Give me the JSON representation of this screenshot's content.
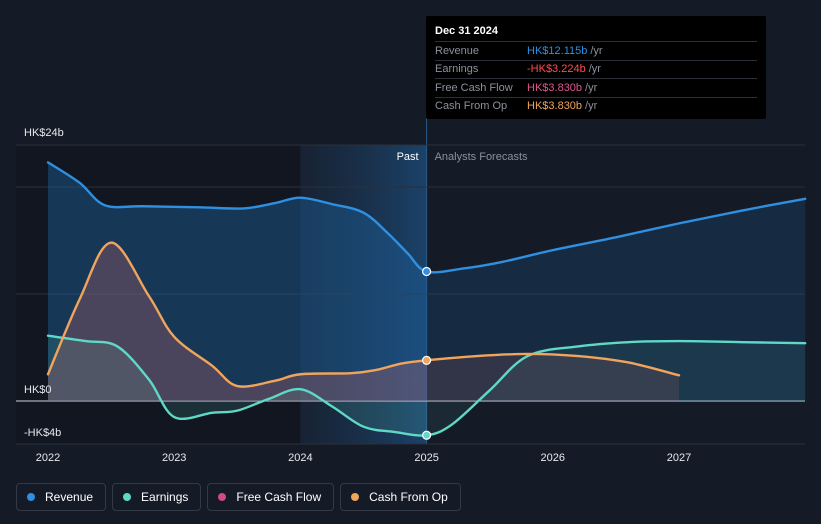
{
  "tooltip": {
    "date": "Dec 31 2024",
    "rows": [
      {
        "label": "Revenue",
        "value": "HK$12.115b",
        "unit": "/yr",
        "color": "#2f8fe0"
      },
      {
        "label": "Earnings",
        "value": "-HK$3.224b",
        "unit": "/yr",
        "color": "#ff4d4d"
      },
      {
        "label": "Free Cash Flow",
        "value": "HK$3.830b",
        "unit": "/yr",
        "color": "#e0558c"
      },
      {
        "label": "Cash From Op",
        "value": "HK$3.830b",
        "unit": "/yr",
        "color": "#f0a45c"
      }
    ]
  },
  "legend": [
    {
      "label": "Revenue",
      "color": "#2f8fe0"
    },
    {
      "label": "Earnings",
      "color": "#5fd9c6"
    },
    {
      "label": "Free Cash Flow",
      "color": "#d04a86"
    },
    {
      "label": "Cash From Op",
      "color": "#f0a45c"
    }
  ],
  "chart_data": {
    "type": "line",
    "title": "",
    "xlabel": "",
    "ylabel": "",
    "x_ticks": [
      "2022",
      "2023",
      "2024",
      "2025",
      "2026",
      "2027"
    ],
    "y_labels": {
      "top": "HK$24b",
      "zero": "HK$0",
      "bottom": "-HK$4b"
    },
    "xlim": [
      2021.8,
      2028.0
    ],
    "ylim": [
      -4,
      24
    ],
    "past_label": "Past",
    "forecast_label": "Analysts Forecasts",
    "divider_x": 2025.0,
    "shaded_start_x": 2024.0,
    "series": [
      {
        "name": "Revenue",
        "color": "#2f8fe0",
        "points": [
          [
            2022.0,
            22.3
          ],
          [
            2022.25,
            20.4
          ],
          [
            2022.45,
            18.3
          ],
          [
            2022.75,
            18.2
          ],
          [
            2023.2,
            18.1
          ],
          [
            2023.55,
            18.0
          ],
          [
            2023.8,
            18.5
          ],
          [
            2024.0,
            19.0
          ],
          [
            2024.25,
            18.4
          ],
          [
            2024.5,
            17.6
          ],
          [
            2024.7,
            15.6
          ],
          [
            2024.85,
            13.8
          ],
          [
            2025.0,
            12.1
          ],
          [
            2025.3,
            12.4
          ],
          [
            2025.6,
            13.0
          ],
          [
            2026.0,
            14.1
          ],
          [
            2026.5,
            15.3
          ],
          [
            2027.0,
            16.6
          ],
          [
            2027.5,
            17.8
          ],
          [
            2028.0,
            18.9
          ]
        ],
        "forecast_from": 2025.0
      },
      {
        "name": "Earnings",
        "color": "#5fd9c6",
        "points": [
          [
            2022.0,
            6.1
          ],
          [
            2022.3,
            5.6
          ],
          [
            2022.55,
            5.1
          ],
          [
            2022.8,
            2.0
          ],
          [
            2023.0,
            -1.5
          ],
          [
            2023.3,
            -1.1
          ],
          [
            2023.5,
            -0.9
          ],
          [
            2023.75,
            0.2
          ],
          [
            2024.0,
            1.1
          ],
          [
            2024.25,
            -0.5
          ],
          [
            2024.5,
            -2.4
          ],
          [
            2024.75,
            -2.9
          ],
          [
            2025.0,
            -3.2
          ],
          [
            2025.2,
            -2.2
          ],
          [
            2025.5,
            1.0
          ],
          [
            2025.8,
            4.2
          ],
          [
            2026.2,
            5.1
          ],
          [
            2026.6,
            5.5
          ],
          [
            2027.0,
            5.6
          ],
          [
            2027.5,
            5.5
          ],
          [
            2028.0,
            5.4
          ]
        ],
        "forecast_from": 2025.0
      },
      {
        "name": "Cash From Op",
        "color": "#f0a45c",
        "points": [
          [
            2022.0,
            2.5
          ],
          [
            2022.25,
            9.5
          ],
          [
            2022.5,
            14.8
          ],
          [
            2022.8,
            9.8
          ],
          [
            2023.0,
            6.0
          ],
          [
            2023.3,
            3.3
          ],
          [
            2023.5,
            1.4
          ],
          [
            2023.8,
            1.9
          ],
          [
            2024.0,
            2.5
          ],
          [
            2024.4,
            2.6
          ],
          [
            2024.6,
            2.9
          ],
          [
            2024.8,
            3.5
          ],
          [
            2025.0,
            3.8
          ],
          [
            2025.4,
            4.2
          ],
          [
            2025.8,
            4.4
          ],
          [
            2026.2,
            4.2
          ],
          [
            2026.6,
            3.6
          ],
          [
            2027.0,
            2.4
          ]
        ],
        "forecast_from": 2025.0
      }
    ]
  }
}
